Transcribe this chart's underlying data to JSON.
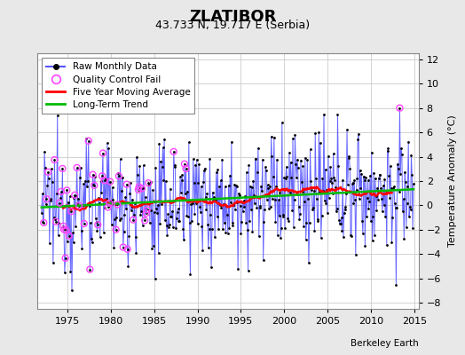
{
  "title": "ZLATIBOR",
  "subtitle": "43.733 N, 19.717 E (Serbia)",
  "ylabel": "Temperature Anomaly (°C)",
  "attribution": "Berkeley Earth",
  "xlim": [
    1971.5,
    2015.5
  ],
  "ylim": [
    -8.5,
    12.5
  ],
  "yticks": [
    -8,
    -6,
    -4,
    -2,
    0,
    2,
    4,
    6,
    8,
    10,
    12
  ],
  "xticks": [
    1975,
    1980,
    1985,
    1990,
    1995,
    2000,
    2005,
    2010,
    2015
  ],
  "background_color": "#e8e8e8",
  "plot_bg_color": "#ffffff",
  "raw_line_color": "#5555ff",
  "raw_dot_color": "#000000",
  "moving_avg_color": "#ff0000",
  "trend_color": "#00bb00",
  "qc_fail_color": "#ff44ff",
  "start_year": 1972,
  "end_year": 2014
}
